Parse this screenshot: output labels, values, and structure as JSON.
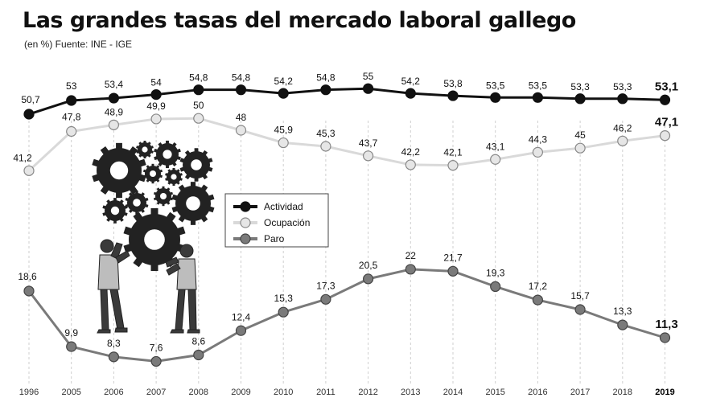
{
  "title": "Las grandes tasas del mercado laboral gallego",
  "subtitle": "(en %) Fuente: INE - IGE",
  "colors": {
    "actividad": "#111111",
    "ocupacion": "#d9d9d9",
    "paro": "#7a7a7a",
    "grid": "#cfcfcf",
    "illustration": "#222222"
  },
  "illustration": {
    "icon": "gears-and-workers"
  },
  "chart_data": {
    "type": "line",
    "title": "Las grandes tasas del mercado laboral gallego",
    "subtitle": "(en %) Fuente: INE - IGE",
    "xlabel": "",
    "ylabel": "",
    "categories": [
      "1996",
      "2005",
      "2006",
      "2007",
      "2008",
      "2009",
      "2010",
      "2011",
      "2012",
      "2013",
      "2014",
      "2015",
      "2016",
      "2017",
      "2018",
      "2019"
    ],
    "series": [
      {
        "name": "Actividad",
        "values": [
          50.7,
          53,
          53.4,
          54,
          54.8,
          54.8,
          54.2,
          54.8,
          55,
          54.2,
          53.8,
          53.5,
          53.5,
          53.3,
          53.3,
          53.1
        ],
        "labels": [
          "50,7",
          "53",
          "53,4",
          "54",
          "54,8",
          "54,8",
          "54,2",
          "54,8",
          "55",
          "54,2",
          "53,8",
          "53,5",
          "53,5",
          "53,3",
          "53,3",
          "53,1"
        ]
      },
      {
        "name": "Ocupación",
        "values": [
          41.2,
          47.8,
          48.9,
          49.9,
          50,
          48,
          45.9,
          45.3,
          43.7,
          42.2,
          42.1,
          43.1,
          44.3,
          45,
          46.2,
          47.1
        ],
        "labels": [
          "41,2",
          "47,8",
          "48,9",
          "49,9",
          "50",
          "48",
          "45,9",
          "45,3",
          "43,7",
          "42,2",
          "42,1",
          "43,1",
          "44,3",
          "45",
          "46,2",
          "47,1"
        ]
      },
      {
        "name": "Paro",
        "values": [
          18.6,
          9.9,
          8.3,
          7.6,
          8.6,
          12.4,
          15.3,
          17.3,
          20.5,
          22,
          21.7,
          19.3,
          17.2,
          15.7,
          13.3,
          11.3
        ],
        "labels": [
          "18,6",
          "9,9",
          "8,3",
          "7,6",
          "8,6",
          "12,4",
          "15,3",
          "17,3",
          "20,5",
          "22",
          "21,7",
          "19,3",
          "17,2",
          "15,7",
          "13,3",
          "11,3"
        ]
      }
    ],
    "legend": [
      "Actividad",
      "Ocupación",
      "Paro"
    ],
    "legend_position": "middle-left",
    "grid": "vertical dashed lines at each year"
  }
}
